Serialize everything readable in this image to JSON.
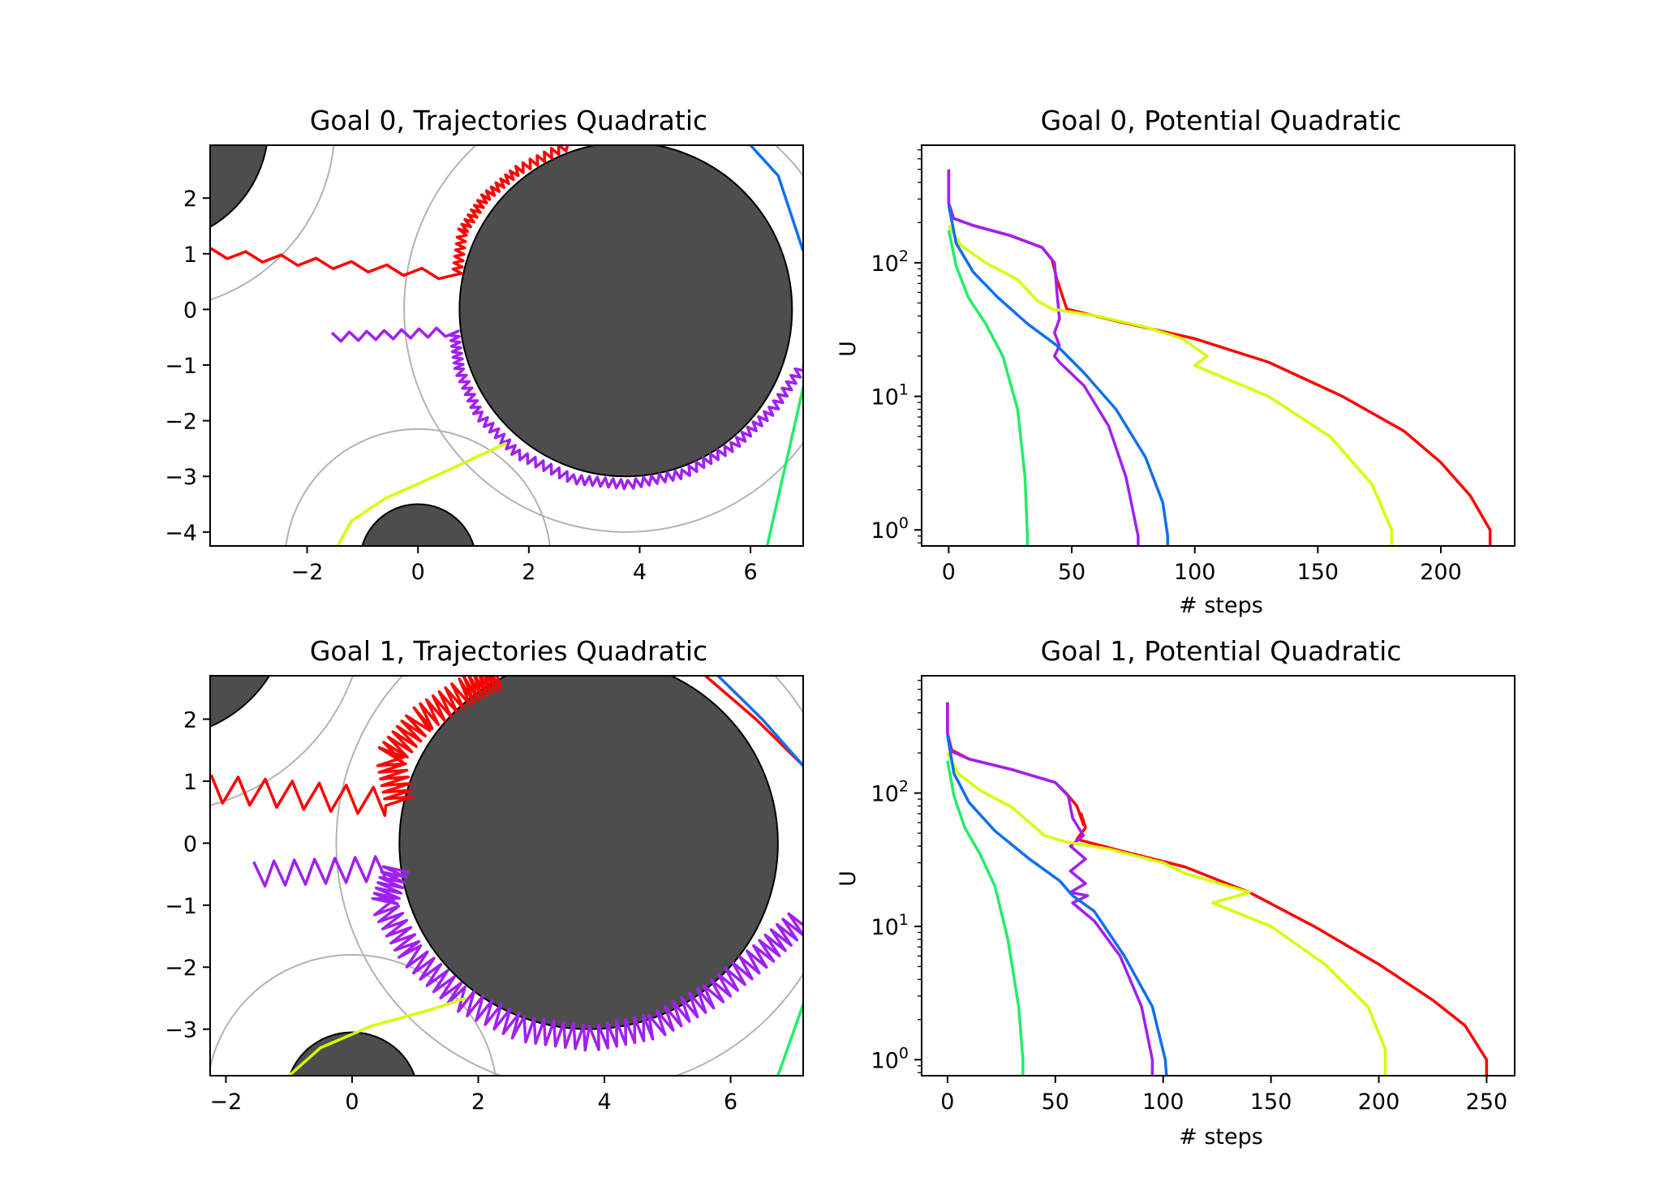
{
  "chart_data": [
    {
      "type": "line",
      "title": "Goal 0, Trajectories Quadratic",
      "xlabel": "",
      "ylabel": "",
      "xlim": [
        -3.75,
        6.95
      ],
      "ylim": [
        -4.25,
        2.95
      ],
      "xticks": [
        -2,
        0,
        2,
        4,
        6
      ],
      "yticks": [
        -4,
        -3,
        -2,
        -1,
        0,
        1,
        2
      ],
      "tick_labels_x": [
        "−2",
        "0",
        "2",
        "4",
        "6"
      ],
      "tick_labels_y": [
        "−4",
        "−3",
        "−2",
        "−1",
        "0",
        "1",
        "2"
      ],
      "obstacles": [
        {
          "cx": -4.8,
          "cy": 3.3,
          "r": 2.1,
          "influence_r": 3.3
        },
        {
          "cx": 3.75,
          "cy": 0.0,
          "r": 3.0,
          "influence_r": 4.0
        },
        {
          "cx": 0.0,
          "cy": -4.55,
          "r": 1.05,
          "influence_r": 2.4
        }
      ],
      "obstacle_color": "#4d4d4d",
      "influence_color": "#b3b3b3",
      "series": [
        {
          "color": "#ff0000",
          "points": [
            [
              -3.75,
              1.02
            ],
            [
              0.7,
              0.6
            ],
            [
              0.8,
              1.4
            ],
            [
              1.2,
              2.0
            ],
            [
              1.8,
              2.5
            ],
            [
              2.7,
              2.95
            ]
          ],
          "zigzag": true
        },
        {
          "color": "#a020f0",
          "points": [
            [
              -1.55,
              -0.5
            ],
            [
              0.65,
              -0.4
            ],
            [
              0.75,
              -1.1
            ],
            [
              1.1,
              -1.9
            ],
            [
              1.8,
              -2.6
            ],
            [
              2.8,
              -3.05
            ],
            [
              3.8,
              -3.15
            ],
            [
              4.8,
              -2.95
            ],
            [
              5.7,
              -2.45
            ],
            [
              6.4,
              -1.8
            ],
            [
              6.95,
              -1.0
            ]
          ],
          "zigzag": true
        },
        {
          "color": "#0f6fef",
          "points": [
            [
              6.0,
              2.95
            ],
            [
              6.5,
              2.4
            ],
            [
              6.95,
              1.05
            ]
          ]
        },
        {
          "color": "#d4ff00",
          "points": [
            [
              -1.45,
              -4.25
            ],
            [
              -1.2,
              -3.8
            ],
            [
              -0.6,
              -3.4
            ],
            [
              0.3,
              -3.0
            ],
            [
              1.6,
              -2.4
            ]
          ]
        },
        {
          "color": "#22ee66",
          "points": [
            [
              6.3,
              -4.25
            ],
            [
              6.95,
              -1.4
            ]
          ]
        }
      ]
    },
    {
      "type": "line",
      "title": "Goal 0, Potential Quadratic",
      "xlabel": "# steps",
      "ylabel": "U",
      "yscale": "log",
      "xlim": [
        -11,
        230
      ],
      "ylim_log10": [
        -0.12,
        2.88
      ],
      "xticks": [
        0,
        50,
        100,
        150,
        200
      ],
      "tick_labels_x": [
        "0",
        "50",
        "100",
        "150",
        "200"
      ],
      "yticks": [
        0,
        1,
        2
      ],
      "series": [
        {
          "color": "#ff0000",
          "points": [
            [
              0,
              480
            ],
            [
              0,
              280
            ],
            [
              2,
              215
            ],
            [
              10,
              190
            ],
            [
              25,
              160
            ],
            [
              38,
              130
            ],
            [
              42,
              105
            ],
            [
              44,
              75
            ],
            [
              48,
              45
            ],
            [
              70,
              36
            ],
            [
              100,
              27
            ],
            [
              130,
              18
            ],
            [
              160,
              10
            ],
            [
              185,
              5.5
            ],
            [
              200,
              3.2
            ],
            [
              212,
              1.8
            ],
            [
              220,
              1.0
            ],
            [
              220,
              0.6
            ]
          ]
        },
        {
          "color": "#a020f0",
          "points": [
            [
              0,
              500
            ],
            [
              0,
              280
            ],
            [
              2,
              215
            ],
            [
              10,
              190
            ],
            [
              25,
              160
            ],
            [
              38,
              130
            ],
            [
              43,
              100
            ],
            [
              44,
              60
            ],
            [
              45,
              38
            ],
            [
              43,
              30
            ],
            [
              45,
              24
            ],
            [
              43,
              20
            ],
            [
              45,
              18
            ],
            [
              55,
              12
            ],
            [
              65,
              6
            ],
            [
              72,
              2.5
            ],
            [
              77,
              0.9
            ],
            [
              77,
              0.6
            ]
          ]
        },
        {
          "color": "#d4ff00",
          "points": [
            [
              0,
              190
            ],
            [
              5,
              135
            ],
            [
              15,
              100
            ],
            [
              28,
              75
            ],
            [
              36,
              52
            ],
            [
              42,
              45
            ],
            [
              60,
              40
            ],
            [
              80,
              33
            ],
            [
              95,
              27
            ],
            [
              105,
              20
            ],
            [
              100,
              17
            ],
            [
              130,
              10
            ],
            [
              155,
              5
            ],
            [
              172,
              2.2
            ],
            [
              180,
              1.0
            ],
            [
              180,
              0.6
            ]
          ]
        },
        {
          "color": "#0f6fef",
          "points": [
            [
              0,
              270
            ],
            [
              3,
              140
            ],
            [
              10,
              85
            ],
            [
              20,
              55
            ],
            [
              32,
              35
            ],
            [
              44,
              24
            ],
            [
              55,
              15
            ],
            [
              68,
              8
            ],
            [
              80,
              3.5
            ],
            [
              87,
              1.6
            ],
            [
              89,
              0.9
            ],
            [
              89,
              0.6
            ]
          ]
        },
        {
          "color": "#22ee66",
          "points": [
            [
              0,
              175
            ],
            [
              3,
              95
            ],
            [
              8,
              55
            ],
            [
              15,
              35
            ],
            [
              22,
              20
            ],
            [
              28,
              8
            ],
            [
              31,
              2.5
            ],
            [
              32,
              0.9
            ],
            [
              32,
              0.6
            ]
          ]
        }
      ]
    },
    {
      "type": "line",
      "title": "Goal 1, Trajectories Quadratic",
      "xlabel": "",
      "ylabel": "",
      "xlim": [
        -2.25,
        7.15
      ],
      "ylim": [
        -3.75,
        2.7
      ],
      "xticks": [
        -2,
        0,
        2,
        4,
        6
      ],
      "yticks": [
        -3,
        -2,
        -1,
        0,
        1,
        2
      ],
      "tick_labels_x": [
        "−2",
        "0",
        "2",
        "4",
        "6"
      ],
      "tick_labels_y": [
        "−3",
        "−2",
        "−1",
        "0",
        "1",
        "2"
      ],
      "obstacles": [
        {
          "cx": -3.1,
          "cy": 3.8,
          "r": 2.1,
          "influence_r": 3.3
        },
        {
          "cx": 3.75,
          "cy": 0.0,
          "r": 3.0,
          "influence_r": 4.0
        },
        {
          "cx": 0.0,
          "cy": -4.1,
          "r": 1.05,
          "influence_r": 2.3
        }
      ],
      "obstacle_color": "#4d4d4d",
      "influence_color": "#b3b3b3",
      "series": [
        {
          "color": "#ff0000",
          "points": [
            [
              -2.25,
              0.88
            ],
            [
              0.75,
              0.65
            ],
            [
              0.6,
              1.4
            ],
            [
              1.1,
              2.0
            ],
            [
              1.8,
              2.45
            ],
            [
              2.3,
              2.7
            ]
          ],
          "zigzag": true,
          "amp": 0.22
        },
        {
          "color": "#ff0000",
          "points": [
            [
              5.6,
              2.7
            ],
            [
              6.4,
              2.0
            ],
            [
              7.15,
              1.25
            ]
          ]
        },
        {
          "color": "#0f6fef",
          "points": [
            [
              5.8,
              2.7
            ],
            [
              6.5,
              2.0
            ],
            [
              7.15,
              1.25
            ]
          ]
        },
        {
          "color": "#a020f0",
          "points": [
            [
              -1.55,
              -0.5
            ],
            [
              0.7,
              -0.4
            ],
            [
              0.5,
              -1.0
            ],
            [
              0.95,
              -1.8
            ],
            [
              1.7,
              -2.5
            ],
            [
              2.7,
              -3.0
            ],
            [
              3.8,
              -3.15
            ],
            [
              4.8,
              -2.95
            ],
            [
              5.7,
              -2.45
            ],
            [
              6.5,
              -1.8
            ],
            [
              7.15,
              -1.2
            ]
          ],
          "zigzag": true,
          "amp": 0.2
        },
        {
          "color": "#d4ff00",
          "points": [
            [
              -1.0,
              -3.75
            ],
            [
              -0.5,
              -3.3
            ],
            [
              0.3,
              -2.95
            ],
            [
              1.2,
              -2.7
            ],
            [
              1.8,
              -2.5
            ]
          ]
        },
        {
          "color": "#22ee66",
          "points": [
            [
              6.75,
              -3.75
            ],
            [
              7.15,
              -2.6
            ]
          ]
        }
      ]
    },
    {
      "type": "line",
      "title": "Goal 1, Potential Quadratic",
      "xlabel": "# steps",
      "ylabel": "U",
      "yscale": "log",
      "xlim": [
        -12,
        263
      ],
      "ylim_log10": [
        -0.12,
        2.88
      ],
      "xticks": [
        0,
        50,
        100,
        150,
        200,
        250
      ],
      "tick_labels_x": [
        "0",
        "50",
        "100",
        "150",
        "200",
        "250"
      ],
      "yticks": [
        0,
        1,
        2
      ],
      "series": [
        {
          "color": "#ff0000",
          "points": [
            [
              0,
              480
            ],
            [
              0,
              280
            ],
            [
              2,
              210
            ],
            [
              10,
              180
            ],
            [
              30,
              150
            ],
            [
              50,
              120
            ],
            [
              55,
              100
            ],
            [
              60,
              80
            ],
            [
              63,
              58
            ],
            [
              62,
              70
            ],
            [
              64,
              55
            ],
            [
              60,
              45
            ],
            [
              80,
              37
            ],
            [
              110,
              28
            ],
            [
              140,
              18
            ],
            [
              170,
              10
            ],
            [
              200,
              5.2
            ],
            [
              225,
              2.8
            ],
            [
              240,
              1.8
            ],
            [
              250,
              1.0
            ],
            [
              250,
              0.6
            ]
          ]
        },
        {
          "color": "#a020f0",
          "points": [
            [
              0,
              480
            ],
            [
              0,
              280
            ],
            [
              2,
              205
            ],
            [
              10,
              180
            ],
            [
              30,
              150
            ],
            [
              50,
              120
            ],
            [
              56,
              95
            ],
            [
              58,
              65
            ],
            [
              63,
              48
            ],
            [
              57,
              40
            ],
            [
              64,
              32
            ],
            [
              57,
              26
            ],
            [
              64,
              21
            ],
            [
              57,
              18
            ],
            [
              65,
              17
            ],
            [
              58,
              15
            ],
            [
              68,
              11
            ],
            [
              80,
              6
            ],
            [
              90,
              2.5
            ],
            [
              95,
              1.0
            ],
            [
              95,
              0.6
            ]
          ]
        },
        {
          "color": "#d4ff00",
          "points": [
            [
              0,
              200
            ],
            [
              5,
              140
            ],
            [
              15,
              105
            ],
            [
              30,
              78
            ],
            [
              45,
              48
            ],
            [
              55,
              43
            ],
            [
              75,
              38
            ],
            [
              100,
              30
            ],
            [
              110,
              25
            ],
            [
              140,
              18
            ],
            [
              123,
              15
            ],
            [
              150,
              10
            ],
            [
              175,
              5.2
            ],
            [
              195,
              2.5
            ],
            [
              203,
              1.2
            ],
            [
              203,
              0.6
            ]
          ]
        },
        {
          "color": "#0f6fef",
          "points": [
            [
              0,
              270
            ],
            [
              3,
              140
            ],
            [
              10,
              85
            ],
            [
              22,
              52
            ],
            [
              38,
              32
            ],
            [
              52,
              22
            ],
            [
              58,
              17
            ],
            [
              68,
              13
            ],
            [
              82,
              6
            ],
            [
              95,
              2.5
            ],
            [
              101,
              1.0
            ],
            [
              102,
              0.6
            ]
          ]
        },
        {
          "color": "#22ee66",
          "points": [
            [
              0,
              175
            ],
            [
              3,
              95
            ],
            [
              8,
              55
            ],
            [
              15,
              35
            ],
            [
              22,
              20
            ],
            [
              28,
              8
            ],
            [
              33,
              2.5
            ],
            [
              35,
              1.0
            ],
            [
              35,
              0.6
            ]
          ]
        }
      ]
    }
  ]
}
